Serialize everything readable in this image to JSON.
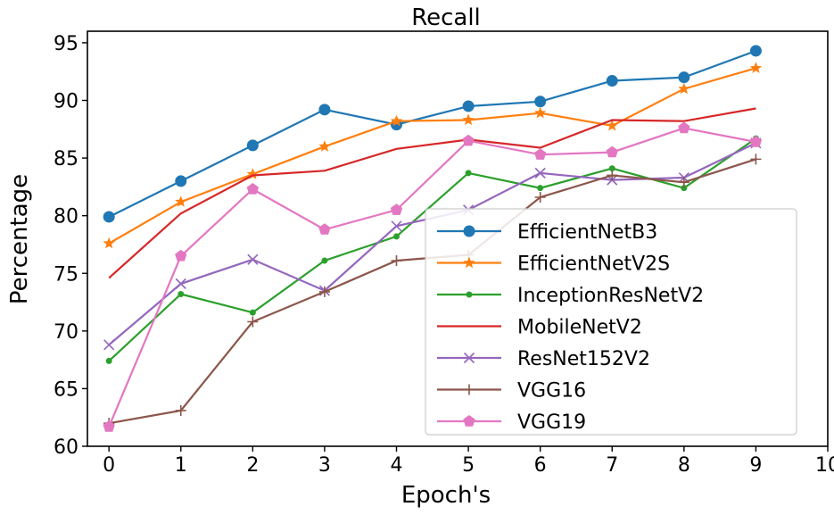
{
  "chart_data": {
    "type": "line",
    "title": "Recall",
    "xlabel": "Epoch's",
    "ylabel": "Percentage",
    "x": [
      0,
      1,
      2,
      3,
      4,
      5,
      6,
      7,
      8,
      9
    ],
    "xlim": [
      -0.3,
      10
    ],
    "ylim": [
      60,
      96
    ],
    "xticks": [
      "0",
      "1",
      "2",
      "3",
      "4",
      "5",
      "6",
      "7",
      "8",
      "9",
      "10"
    ],
    "yticks": [
      "60",
      "65",
      "70",
      "75",
      "80",
      "85",
      "90",
      "95"
    ],
    "grid": false,
    "legend_position": "center-right",
    "series": [
      {
        "name": "EfficientNetB3",
        "color": "#1f77b4",
        "marker": "circle",
        "values": [
          79.9,
          83.0,
          86.1,
          89.2,
          87.9,
          89.5,
          89.9,
          91.7,
          92.0,
          94.3
        ]
      },
      {
        "name": "EfficientNetV2S",
        "color": "#ff7f0e",
        "marker": "star",
        "values": [
          77.6,
          81.2,
          83.6,
          86.0,
          88.2,
          88.3,
          88.9,
          87.8,
          91.0,
          92.8
        ]
      },
      {
        "name": "InceptionResNetV2",
        "color": "#2ca02c",
        "marker": "point",
        "values": [
          67.4,
          73.2,
          71.6,
          76.1,
          78.2,
          83.7,
          82.4,
          84.1,
          82.4,
          86.7
        ]
      },
      {
        "name": "MobileNetV2",
        "color": "#d62728",
        "marker": "none",
        "values": [
          74.6,
          80.2,
          83.5,
          83.9,
          85.8,
          86.6,
          85.9,
          88.3,
          88.2,
          89.3
        ]
      },
      {
        "name": "ResNet152V2",
        "color": "#9467bd",
        "marker": "x",
        "values": [
          68.8,
          74.1,
          76.2,
          73.5,
          79.1,
          80.5,
          83.7,
          83.1,
          83.3,
          86.3
        ]
      },
      {
        "name": "VGG16",
        "color": "#8c564b",
        "marker": "plus",
        "values": [
          62.0,
          63.1,
          70.8,
          73.4,
          76.1,
          76.6,
          81.6,
          83.5,
          82.9,
          84.9
        ]
      },
      {
        "name": "VGG19",
        "color": "#e377c2",
        "marker": "pentagon",
        "values": [
          61.7,
          76.5,
          82.3,
          78.8,
          80.5,
          86.5,
          85.3,
          85.5,
          87.6,
          86.4
        ]
      }
    ]
  }
}
